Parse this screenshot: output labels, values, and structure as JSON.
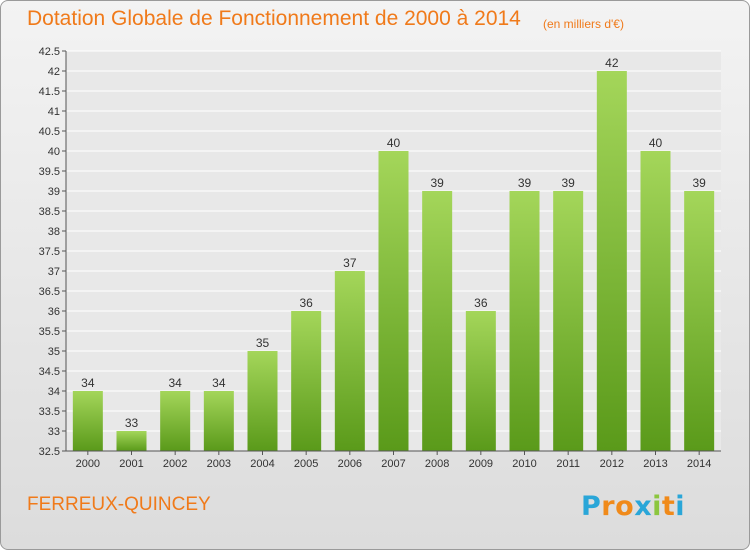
{
  "title": "Dotation Globale de Fonctionnement de 2000 à 2014",
  "unit_note": "(en milliers d'€)",
  "commune": "FERREUX-QUINCEY",
  "logo": {
    "text": "Proxiti",
    "letters": [
      "P",
      "r",
      "o",
      "x",
      "i",
      "t",
      "i"
    ],
    "colors": [
      "#2aa6d8",
      "#f08a1a",
      "#f08a1a",
      "#2aa6d8",
      "#8cc63f",
      "#f08a1a",
      "#2aa6d8"
    ]
  },
  "colors": {
    "accent": "#f07a1a",
    "bar_top": "#a4d65a",
    "bar_bottom": "#5a9a1a",
    "grid": "#ffffff",
    "background": "#e8e8e8"
  },
  "chart_data": {
    "type": "bar",
    "title": "Dotation Globale de Fonctionnement de 2000 à 2014",
    "subtitle": "(en milliers d'€)",
    "xlabel": "",
    "ylabel": "",
    "categories": [
      "2000",
      "2001",
      "2002",
      "2003",
      "2004",
      "2005",
      "2006",
      "2007",
      "2008",
      "2009",
      "2010",
      "2011",
      "2012",
      "2013",
      "2014"
    ],
    "values": [
      34,
      33,
      34,
      34,
      35,
      36,
      37,
      40,
      39,
      36,
      39,
      39,
      42,
      40,
      39
    ],
    "ylim": [
      32.5,
      42.5
    ],
    "yticks": [
      "32.5",
      "33",
      "33.5",
      "34",
      "34.5",
      "35",
      "35.5",
      "36",
      "36.5",
      "37",
      "37.5",
      "38",
      "38.5",
      "39",
      "39.5",
      "40",
      "40.5",
      "41",
      "41.5",
      "42",
      "42.5"
    ],
    "grid": true,
    "legend": "none"
  }
}
